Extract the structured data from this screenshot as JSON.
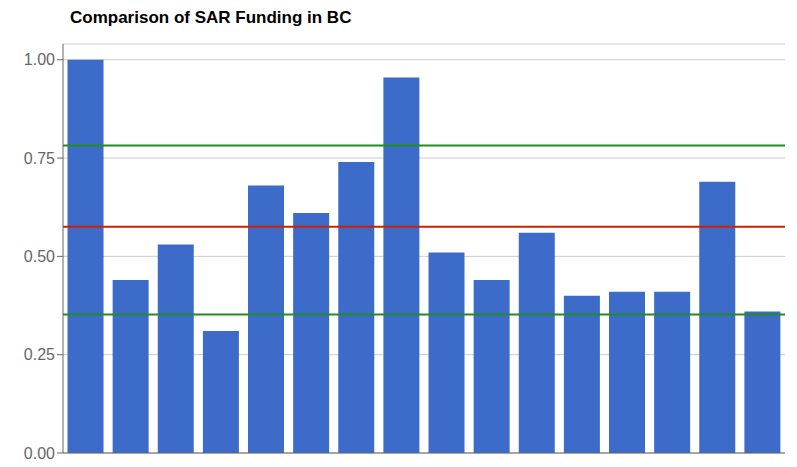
{
  "chart_data": {
    "type": "bar",
    "title": "Comparison of SAR Funding in BC",
    "categories": [
      null,
      null,
      null,
      null,
      null,
      null,
      null,
      null,
      null,
      null,
      null,
      null,
      null,
      null,
      null,
      null
    ],
    "values": [
      1.0,
      0.44,
      0.53,
      0.31,
      0.68,
      0.61,
      0.74,
      0.955,
      0.51,
      0.44,
      0.56,
      0.4,
      0.41,
      0.41,
      0.69,
      0.36
    ],
    "color": "#3C6BC9",
    "ylim": [
      0.0,
      1.04
    ],
    "yticks": [
      {
        "value": 0.0,
        "label": "0.00"
      },
      {
        "value": 0.25,
        "label": "0.25"
      },
      {
        "value": 0.5,
        "label": "0.50"
      },
      {
        "value": 0.75,
        "label": "0.75"
      },
      {
        "value": 1.0,
        "label": "1.00"
      }
    ],
    "grid": true,
    "tick_labels": "y",
    "reference_lines": [
      {
        "value": 0.575,
        "color": "#CC2200"
      },
      {
        "value": 0.782,
        "color": "#228B22"
      },
      {
        "value": 0.352,
        "color": "#228B22"
      }
    ]
  }
}
